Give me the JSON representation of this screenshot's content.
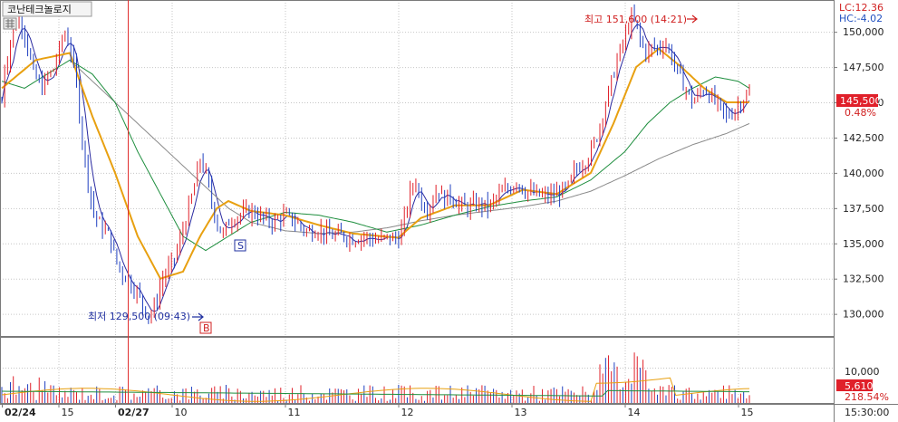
{
  "title": "코난테크놀로지",
  "lc_label": "LC:12.36",
  "hc_label": "HC:-4.02",
  "current_price": "145,500",
  "current_change": "0.48%",
  "high_label": "최고 151,600 (14:21)",
  "low_label": "최저 129,500 (09:43)",
  "buy_marker": "B",
  "sell_marker": "S",
  "volume_current": "5,610",
  "volume_ratio": "218.54%",
  "volume_tick": "10,000",
  "time_label": "15:30:00",
  "colors": {
    "up": "#e0202a",
    "down": "#2040c0",
    "ma_short": "#2a2aa0",
    "ma_mid": "#e8a010",
    "ma_long": "#1e8e3e",
    "ma_longest": "#8a8a8a",
    "price_box": "#e0202a"
  },
  "chart_data": {
    "type": "line",
    "title": "",
    "y_ticks": [
      "150,000",
      "147,500",
      "145,000",
      "142,500",
      "140,000",
      "137,500",
      "135,000",
      "132,500",
      "130,000"
    ],
    "y_range": [
      128500,
      152000
    ],
    "x_tick_labels": [
      {
        "label": "02/24",
        "day": 0,
        "bold": true
      },
      {
        "label": "15",
        "day": 0.5,
        "bold": false
      },
      {
        "label": "02/27",
        "day": 1,
        "bold": true
      },
      {
        "label": "10",
        "day": 1.5,
        "bold": false
      },
      {
        "label": "11",
        "day": 2.5,
        "bold": false
      },
      {
        "label": "12",
        "day": 3.5,
        "bold": false
      },
      {
        "label": "13",
        "day": 4.5,
        "bold": false
      },
      {
        "label": "14",
        "day": 5.5,
        "bold": false
      },
      {
        "label": "15",
        "day": 6.5,
        "bold": false
      }
    ],
    "high": {
      "value": 151600,
      "time": "14:21"
    },
    "low": {
      "value": 129500,
      "time": "09:43"
    },
    "last_price": 145500,
    "price_series": [
      [
        0,
        145000
      ],
      [
        0.02,
        147500
      ],
      [
        0.05,
        148000
      ],
      [
        0.08,
        149500
      ],
      [
        0.12,
        150500
      ],
      [
        0.16,
        151000
      ],
      [
        0.2,
        150000
      ],
      [
        0.24,
        148500
      ],
      [
        0.28,
        147000
      ],
      [
        0.32,
        146500
      ],
      [
        0.36,
        146000
      ],
      [
        0.4,
        146800
      ],
      [
        0.45,
        147200
      ],
      [
        0.5,
        148500
      ],
      [
        0.55,
        150000
      ],
      [
        0.6,
        149000
      ],
      [
        0.65,
        147000
      ],
      [
        0.7,
        143000
      ],
      [
        0.75,
        140000
      ],
      [
        0.8,
        137500
      ],
      [
        0.85,
        136500
      ],
      [
        0.9,
        136000
      ],
      [
        0.95,
        135500
      ],
      [
        1.0,
        134000
      ],
      [
        1.05,
        133000
      ],
      [
        1.1,
        132500
      ],
      [
        1.15,
        132000
      ],
      [
        1.2,
        131500
      ],
      [
        1.25,
        130500
      ],
      [
        1.3,
        129800
      ],
      [
        1.35,
        130500
      ],
      [
        1.4,
        132000
      ],
      [
        1.45,
        133000
      ],
      [
        1.5,
        133500
      ],
      [
        1.55,
        134500
      ],
      [
        1.6,
        136000
      ],
      [
        1.65,
        137500
      ],
      [
        1.7,
        139000
      ],
      [
        1.75,
        141000
      ],
      [
        1.8,
        140000
      ],
      [
        1.85,
        138000
      ],
      [
        1.9,
        136500
      ],
      [
        1.95,
        135500
      ],
      [
        2.0,
        136500
      ],
      [
        2.1,
        137000
      ],
      [
        2.2,
        137300
      ],
      [
        2.3,
        136800
      ],
      [
        2.4,
        136500
      ],
      [
        2.5,
        137000
      ],
      [
        2.6,
        136500
      ],
      [
        2.7,
        135800
      ],
      [
        2.8,
        136000
      ],
      [
        2.9,
        135500
      ],
      [
        3.0,
        135600
      ],
      [
        3.1,
        135300
      ],
      [
        3.2,
        135500
      ],
      [
        3.3,
        135200
      ],
      [
        3.4,
        135400
      ],
      [
        3.5,
        135300
      ],
      [
        3.55,
        136500
      ],
      [
        3.6,
        138500
      ],
      [
        3.65,
        139500
      ],
      [
        3.7,
        138000
      ],
      [
        3.75,
        137500
      ],
      [
        3.8,
        138000
      ],
      [
        3.85,
        139000
      ],
      [
        3.9,
        138000
      ],
      [
        3.95,
        138500
      ],
      [
        4.0,
        138000
      ],
      [
        4.1,
        137500
      ],
      [
        4.2,
        137800
      ],
      [
        4.3,
        137600
      ],
      [
        4.4,
        138500
      ],
      [
        4.5,
        139000
      ],
      [
        4.55,
        139500
      ],
      [
        4.6,
        138800
      ],
      [
        4.7,
        138500
      ],
      [
        4.8,
        138300
      ],
      [
        4.9,
        138500
      ],
      [
        5.0,
        139000
      ],
      [
        5.05,
        140000
      ],
      [
        5.1,
        140500
      ],
      [
        5.15,
        140800
      ],
      [
        5.2,
        141500
      ],
      [
        5.25,
        142500
      ],
      [
        5.3,
        144000
      ],
      [
        5.35,
        145500
      ],
      [
        5.4,
        147000
      ],
      [
        5.45,
        148500
      ],
      [
        5.5,
        149500
      ],
      [
        5.55,
        151000
      ],
      [
        5.6,
        150500
      ],
      [
        5.65,
        149000
      ],
      [
        5.7,
        148500
      ],
      [
        5.75,
        149000
      ],
      [
        5.8,
        148800
      ],
      [
        5.85,
        149300
      ],
      [
        5.9,
        148500
      ],
      [
        5.95,
        147500
      ],
      [
        6.0,
        146500
      ],
      [
        6.05,
        145800
      ],
      [
        6.1,
        145000
      ],
      [
        6.15,
        145500
      ],
      [
        6.2,
        146000
      ],
      [
        6.25,
        145500
      ],
      [
        6.3,
        145000
      ],
      [
        6.35,
        144500
      ],
      [
        6.4,
        144000
      ],
      [
        6.45,
        144300
      ],
      [
        6.5,
        144800
      ],
      [
        6.55,
        145300
      ],
      [
        6.6,
        145500
      ]
    ],
    "ma_mid": [
      [
        0,
        146000
      ],
      [
        0.3,
        148000
      ],
      [
        0.6,
        148500
      ],
      [
        0.8,
        144000
      ],
      [
        1.0,
        140000
      ],
      [
        1.2,
        135500
      ],
      [
        1.4,
        132500
      ],
      [
        1.6,
        133000
      ],
      [
        1.75,
        135500
      ],
      [
        1.9,
        137500
      ],
      [
        2.0,
        138000
      ],
      [
        2.2,
        137300
      ],
      [
        2.5,
        137000
      ],
      [
        2.8,
        136300
      ],
      [
        3.1,
        135700
      ],
      [
        3.5,
        135400
      ],
      [
        3.7,
        136800
      ],
      [
        4.0,
        137700
      ],
      [
        4.3,
        137700
      ],
      [
        4.6,
        138800
      ],
      [
        4.9,
        138500
      ],
      [
        5.2,
        140000
      ],
      [
        5.4,
        143500
      ],
      [
        5.6,
        147500
      ],
      [
        5.8,
        148800
      ],
      [
        6.0,
        147500
      ],
      [
        6.2,
        146000
      ],
      [
        6.4,
        145000
      ],
      [
        6.6,
        145000
      ]
    ],
    "ma_long": [
      [
        0,
        146500
      ],
      [
        0.2,
        146000
      ],
      [
        0.4,
        147000
      ],
      [
        0.6,
        148000
      ],
      [
        0.8,
        147000
      ],
      [
        1.0,
        145000
      ],
      [
        1.2,
        141500
      ],
      [
        1.4,
        138500
      ],
      [
        1.6,
        135500
      ],
      [
        1.8,
        134500
      ],
      [
        2.0,
        135500
      ],
      [
        2.2,
        136500
      ],
      [
        2.5,
        137200
      ],
      [
        2.8,
        137000
      ],
      [
        3.1,
        136500
      ],
      [
        3.4,
        135800
      ],
      [
        3.7,
        136300
      ],
      [
        4.0,
        137000
      ],
      [
        4.3,
        137600
      ],
      [
        4.6,
        138000
      ],
      [
        4.9,
        138300
      ],
      [
        5.2,
        139500
      ],
      [
        5.5,
        141500
      ],
      [
        5.7,
        143500
      ],
      [
        5.9,
        145000
      ],
      [
        6.1,
        146000
      ],
      [
        6.3,
        146800
      ],
      [
        6.5,
        146500
      ],
      [
        6.6,
        146000
      ]
    ],
    "ma_longest": [
      [
        0.6,
        148000
      ],
      [
        0.8,
        146500
      ],
      [
        1.0,
        145000
      ],
      [
        1.2,
        143500
      ],
      [
        1.4,
        142000
      ],
      [
        1.6,
        140500
      ],
      [
        1.8,
        139000
      ],
      [
        2.0,
        137500
      ],
      [
        2.2,
        136500
      ],
      [
        2.5,
        135900
      ],
      [
        2.8,
        135700
      ],
      [
        3.1,
        135800
      ],
      [
        3.4,
        136100
      ],
      [
        3.7,
        136600
      ],
      [
        4.0,
        137000
      ],
      [
        4.3,
        137300
      ],
      [
        4.6,
        137600
      ],
      [
        4.9,
        138000
      ],
      [
        5.2,
        138700
      ],
      [
        5.5,
        139800
      ],
      [
        5.8,
        141000
      ],
      [
        6.1,
        142000
      ],
      [
        6.4,
        142800
      ],
      [
        6.6,
        143500
      ]
    ],
    "volume": {
      "y_range": [
        0,
        18000
      ],
      "tick": 10000,
      "current": 5610,
      "ratio_percent": 218.54
    }
  }
}
